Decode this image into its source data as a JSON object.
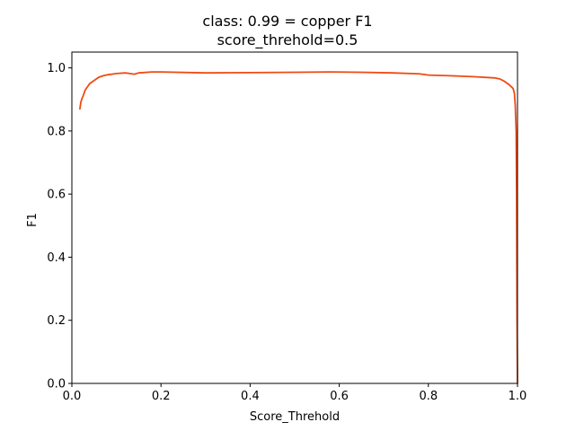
{
  "chart_data": {
    "type": "line",
    "title_lines": [
      "class: 0.99 = copper F1",
      "score_threhold=0.5"
    ],
    "xlabel": "Score_Threhold",
    "ylabel": "F1",
    "xlim": [
      0.0,
      1.0
    ],
    "ylim": [
      0.0,
      1.05
    ],
    "grid": false,
    "x_ticks": [
      {
        "value": 0.0,
        "label": "0.0"
      },
      {
        "value": 0.2,
        "label": "0.2"
      },
      {
        "value": 0.4,
        "label": "0.4"
      },
      {
        "value": 0.6,
        "label": "0.6"
      },
      {
        "value": 0.8,
        "label": "0.8"
      },
      {
        "value": 1.0,
        "label": "1.0"
      }
    ],
    "y_ticks": [
      {
        "value": 0.0,
        "label": "0.0"
      },
      {
        "value": 0.2,
        "label": "0.2"
      },
      {
        "value": 0.4,
        "label": "0.4"
      },
      {
        "value": 0.6,
        "label": "0.6"
      },
      {
        "value": 0.8,
        "label": "0.8"
      },
      {
        "value": 1.0,
        "label": "1.0"
      }
    ],
    "series": [
      {
        "color": "#f04a12",
        "x": [
          0.018,
          0.02,
          0.022,
          0.025,
          0.03,
          0.035,
          0.04,
          0.045,
          0.05,
          0.055,
          0.06,
          0.07,
          0.08,
          0.1,
          0.12,
          0.13,
          0.14,
          0.15,
          0.18,
          0.2,
          0.3,
          0.4,
          0.5,
          0.58,
          0.65,
          0.72,
          0.78,
          0.8,
          0.85,
          0.9,
          0.95,
          0.96,
          0.97,
          0.98,
          0.99,
          0.993,
          0.995,
          0.997,
          0.998,
          0.999,
          1.0
        ],
        "y": [
          0.87,
          0.89,
          0.9,
          0.91,
          0.93,
          0.94,
          0.95,
          0.955,
          0.96,
          0.965,
          0.97,
          0.975,
          0.978,
          0.982,
          0.984,
          0.982,
          0.98,
          0.984,
          0.987,
          0.987,
          0.984,
          0.985,
          0.986,
          0.987,
          0.986,
          0.984,
          0.981,
          0.977,
          0.975,
          0.972,
          0.968,
          0.965,
          0.958,
          0.948,
          0.935,
          0.92,
          0.88,
          0.8,
          0.6,
          0.2,
          0.0
        ]
      }
    ]
  }
}
